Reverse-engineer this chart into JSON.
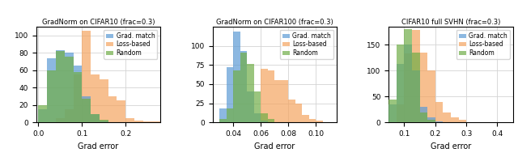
{
  "titles": [
    "GradNorm on CIFAR10 (frac=0.3)",
    "GradNorm on CIFAR100 (frac=0.3)",
    "CIFAR10 full SVHN (frac=0.3)"
  ],
  "xlabel": "Grad error",
  "colors": {
    "grad_match": "#5B9BD5",
    "loss_based": "#F4A460",
    "random": "#70AD47"
  },
  "legend_labels": [
    "Grad. match",
    "Loss-based",
    "Random"
  ],
  "alpha": 0.7,
  "plot1": {
    "xlim": [
      -0.005,
      0.28
    ],
    "ylim": [
      0,
      110
    ],
    "xticks": [
      0.0,
      0.1,
      0.2
    ],
    "yticks": [
      0,
      20,
      40,
      60,
      80,
      100
    ],
    "bin_edges": [
      0.0,
      0.02,
      0.04,
      0.06,
      0.08,
      0.1,
      0.12,
      0.14,
      0.16,
      0.18,
      0.2,
      0.22,
      0.24,
      0.26,
      0.28
    ],
    "gm_heights": [
      15,
      74,
      83,
      80,
      65,
      30,
      10,
      2,
      0,
      0,
      0,
      0,
      0,
      0
    ],
    "lb_heights": [
      0,
      0,
      5,
      15,
      55,
      105,
      55,
      50,
      30,
      25,
      5,
      2,
      1,
      1
    ],
    "rn_heights": [
      20,
      60,
      82,
      76,
      58,
      27,
      10,
      3,
      0,
      0,
      0,
      0,
      0,
      0
    ]
  },
  "plot2": {
    "xlim": [
      0.025,
      0.115
    ],
    "ylim": [
      0,
      125
    ],
    "xticks": [
      0.04,
      0.06,
      0.08,
      0.1
    ],
    "yticks": [
      0,
      25,
      50,
      75,
      100
    ],
    "bin_edges": [
      0.025,
      0.03,
      0.035,
      0.04,
      0.045,
      0.05,
      0.055,
      0.06,
      0.065,
      0.07,
      0.075,
      0.08,
      0.085,
      0.09,
      0.095,
      0.1,
      0.105,
      0.11,
      0.115
    ],
    "gm_heights": [
      0,
      18,
      72,
      119,
      93,
      40,
      12,
      2,
      0,
      0,
      0,
      0,
      0,
      0,
      0,
      0,
      0,
      0
    ],
    "lb_heights": [
      0,
      0,
      0,
      0,
      0,
      0,
      0,
      70,
      68,
      55,
      55,
      30,
      25,
      10,
      5,
      2,
      0,
      0
    ],
    "rn_heights": [
      0,
      5,
      18,
      68,
      91,
      76,
      40,
      12,
      5,
      0,
      0,
      0,
      0,
      0,
      0,
      0,
      0,
      0
    ]
  },
  "plot3": {
    "xlim": [
      0.05,
      0.45
    ],
    "ylim": [
      0,
      185
    ],
    "xticks": [
      0.1,
      0.2,
      0.3,
      0.4
    ],
    "yticks": [
      0,
      50,
      100,
      150
    ],
    "bin_edges": [
      0.05,
      0.075,
      0.1,
      0.125,
      0.15,
      0.175,
      0.2,
      0.225,
      0.25,
      0.275,
      0.3,
      0.325,
      0.35,
      0.375,
      0.4,
      0.425,
      0.45
    ],
    "gm_heights": [
      35,
      113,
      150,
      100,
      30,
      10,
      2,
      0,
      0,
      0,
      0,
      0,
      0,
      0,
      0,
      0
    ],
    "lb_heights": [
      0,
      35,
      134,
      178,
      135,
      100,
      40,
      20,
      10,
      5,
      1,
      0,
      0,
      0,
      0,
      0
    ],
    "rn_heights": [
      45,
      150,
      180,
      135,
      20,
      5,
      1,
      0,
      0,
      0,
      0,
      0,
      0,
      0,
      0,
      0
    ]
  }
}
